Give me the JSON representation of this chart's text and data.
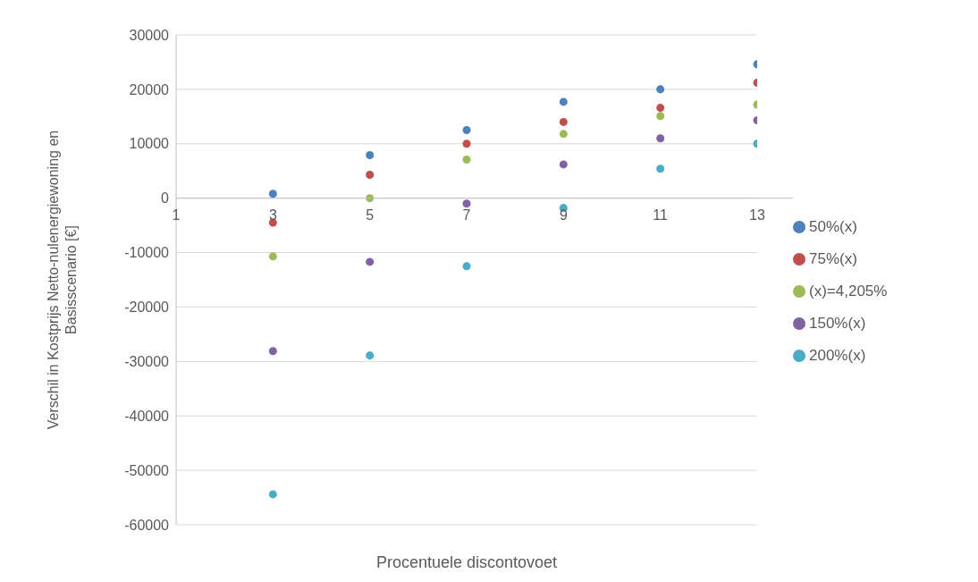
{
  "chart_data": {
    "type": "scatter",
    "xlabel": "Procentuele discontovoet",
    "ylabel": "Verschil in Kostprijs Netto-nulenergiewoning en Basisscenario [€]",
    "x": [
      3,
      5,
      7,
      9,
      11,
      13
    ],
    "series": [
      {
        "name": "50%(x)",
        "color": "#4f81bd",
        "values": [
          800,
          7900,
          12500,
          17700,
          20000,
          24600
        ]
      },
      {
        "name": "75%(x)",
        "color": "#c0504d",
        "values": [
          -4500,
          4300,
          10000,
          14000,
          16600,
          21200
        ]
      },
      {
        "name": "(x)=4,205%",
        "color": "#9bbb59",
        "values": [
          -10700,
          0,
          7100,
          11800,
          15100,
          17200
        ]
      },
      {
        "name": "150%(x)",
        "color": "#8064a2",
        "values": [
          -28100,
          -11700,
          -1000,
          6200,
          11000,
          14300
        ]
      },
      {
        "name": "200%(x)",
        "color": "#4bacc6",
        "values": [
          -54400,
          -28900,
          -12500,
          -1800,
          5400,
          10000
        ]
      }
    ],
    "xlim": [
      1,
      13
    ],
    "xticks": [
      1,
      3,
      5,
      7,
      9,
      11,
      13
    ],
    "ylim": [
      -60000,
      30000
    ],
    "yticks": [
      30000,
      20000,
      10000,
      0,
      -10000,
      -20000,
      -30000,
      -40000,
      -50000,
      -60000
    ],
    "grid": "y",
    "legend": "right",
    "marker": "circle"
  }
}
